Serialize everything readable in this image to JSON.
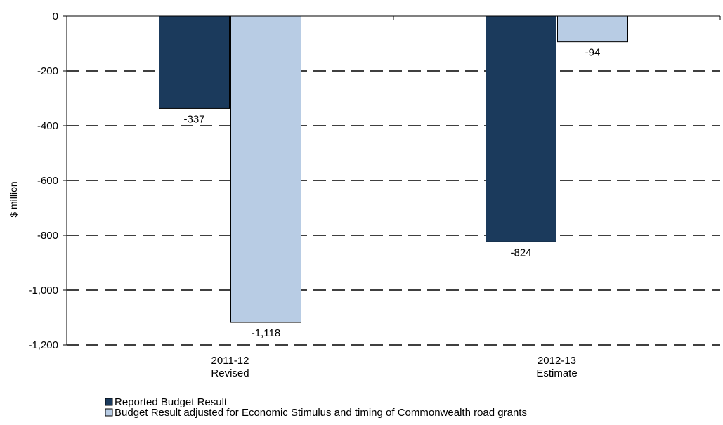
{
  "chart_data": {
    "type": "bar",
    "categories": [
      [
        "2011-12",
        "Revised"
      ],
      [
        "2012-13",
        "Estimate"
      ]
    ],
    "series": [
      {
        "name": "Reported Budget Result",
        "values": [
          -337,
          -824
        ],
        "labels": [
          "-337",
          "-824"
        ],
        "color": "#1b3a5c"
      },
      {
        "name": "Budget Result adjusted for Economic Stimulus and timing of Commonwealth road grants",
        "values": [
          -1118,
          -94
        ],
        "labels": [
          "-1,118",
          "-94"
        ],
        "color": "#b8cce4"
      }
    ],
    "ylabel": "$ million",
    "ylim": [
      -1200,
      0
    ],
    "yticks": [
      0,
      -200,
      -400,
      -600,
      -800,
      -1000,
      -1200
    ],
    "ytick_labels": [
      "0",
      "-200",
      "-400",
      "-600",
      "-800",
      "-1,000",
      "-1,200"
    ],
    "grid": "dashed horizontal",
    "legend_position": "bottom-left"
  }
}
